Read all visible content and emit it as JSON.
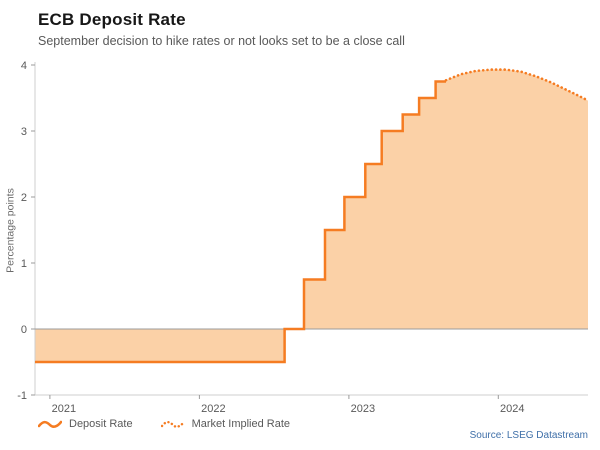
{
  "chart_data": {
    "type": "line",
    "title": "ECB Deposit Rate",
    "subtitle": "September decision to hike rates or not looks set to be a close call",
    "ylabel": "Percentage points",
    "ylim": [
      -1,
      4
    ],
    "yticks": [
      -1,
      0,
      1,
      2,
      3,
      4
    ],
    "xlim": [
      2020.9,
      2024.6
    ],
    "xticks": [
      2021,
      2022,
      2023,
      2024
    ],
    "grid": false,
    "legend_position": "bottom-left",
    "fill_to": 0,
    "line_color": "#f57c22",
    "fill_color": "#fbd1a7",
    "axis_color": "#cfcfcf",
    "zero_line_color": "#9b9b9b",
    "series": [
      {
        "name": "Deposit Rate",
        "style": "solid",
        "x": [
          2020.9,
          2022.57,
          2022.57,
          2022.7,
          2022.7,
          2022.84,
          2022.84,
          2022.97,
          2022.97,
          2023.11,
          2023.11,
          2023.22,
          2023.22,
          2023.36,
          2023.36,
          2023.47,
          2023.47,
          2023.58,
          2023.58,
          2023.65
        ],
        "y": [
          -0.5,
          -0.5,
          0.0,
          0.0,
          0.75,
          0.75,
          1.5,
          1.5,
          2.0,
          2.0,
          2.5,
          2.5,
          3.0,
          3.0,
          3.25,
          3.25,
          3.5,
          3.5,
          3.75,
          3.75
        ]
      },
      {
        "name": "Market Implied Rate",
        "style": "dotted",
        "x": [
          2023.65,
          2023.75,
          2023.85,
          2023.95,
          2024.05,
          2024.15,
          2024.25,
          2024.35,
          2024.45,
          2024.55,
          2024.6
        ],
        "y": [
          3.77,
          3.86,
          3.91,
          3.93,
          3.93,
          3.9,
          3.83,
          3.74,
          3.63,
          3.52,
          3.46
        ]
      }
    ]
  },
  "source": "Source: LSEG Datastream"
}
